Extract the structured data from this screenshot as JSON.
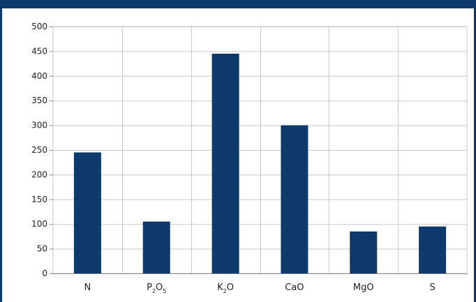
{
  "colors": {
    "bar": "#0e3a6b",
    "frame": "#0e3a6b",
    "grid": "#c8c8c8",
    "axis": "#888888"
  },
  "chart_data": {
    "type": "bar",
    "title": "",
    "xlabel": "",
    "ylabel": "",
    "ylim": [
      0,
      500
    ],
    "yticks": [
      0,
      50,
      100,
      150,
      200,
      250,
      300,
      350,
      400,
      450,
      500
    ],
    "grid": true,
    "legend": "none",
    "categories": [
      {
        "base": "N",
        "parts": []
      },
      {
        "base": "P",
        "parts": [
          [
            "2",
            "O"
          ],
          [
            "5",
            ""
          ]
        ]
      },
      {
        "base": "K",
        "parts": [
          [
            "2",
            "O"
          ]
        ]
      },
      {
        "base": "CaO",
        "parts": []
      },
      {
        "base": "MgO",
        "parts": []
      },
      {
        "base": "S",
        "parts": []
      }
    ],
    "values": [
      245,
      105,
      445,
      300,
      85,
      95
    ]
  }
}
